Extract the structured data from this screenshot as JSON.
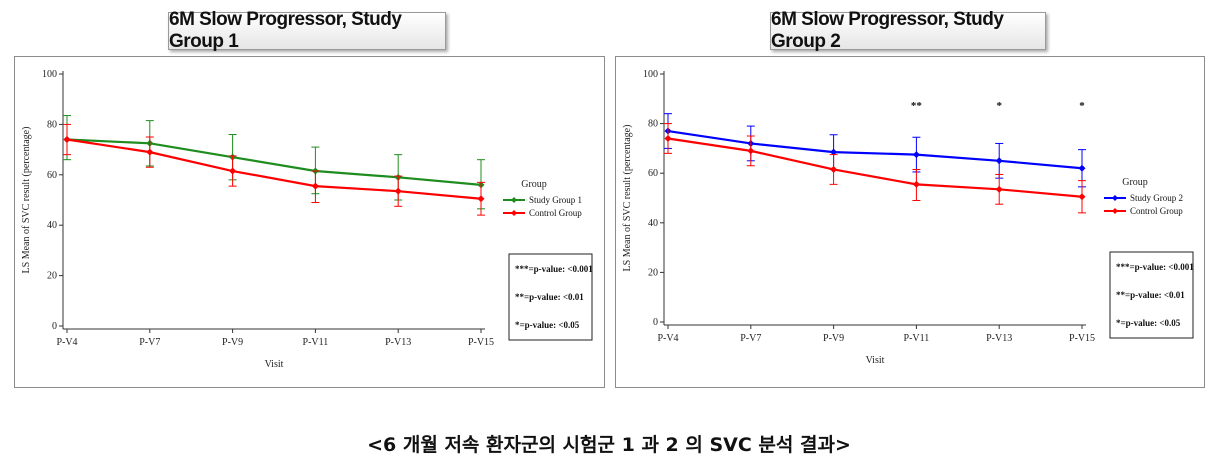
{
  "caption": "<6 개월 저속 환자군의 시험군 1 과 2 의 SVC 분석 결과>",
  "charts": [
    {
      "type": "line",
      "title": "6M Slow Progressor, Study Group 1",
      "xlabel": "Visit",
      "ylabel": "LS Mean of SVC result (percentage)",
      "categories": [
        "P-V4",
        "P-V7",
        "P-V9",
        "P-V11",
        "P-V13",
        "P-V15"
      ],
      "ylim": [
        0,
        100
      ],
      "yticks": [
        0,
        20,
        40,
        60,
        80,
        100
      ],
      "legend_title": "Group",
      "series": [
        {
          "name": "Study Group 1",
          "color": "#1e8c1e",
          "values": [
            74,
            72.5,
            67,
            61.5,
            59,
            56
          ],
          "lower": [
            66,
            63.5,
            58,
            52.5,
            50,
            46.5
          ],
          "upper": [
            83.5,
            81.5,
            76,
            71,
            68,
            66
          ]
        },
        {
          "name": "Control Group",
          "color": "#ff0000",
          "values": [
            74,
            69,
            61.5,
            55.5,
            53.5,
            50.5
          ],
          "lower": [
            68,
            63,
            55.5,
            49,
            47.5,
            44
          ],
          "upper": [
            80,
            75,
            67.5,
            61.5,
            59.5,
            57
          ]
        }
      ],
      "significance": [
        "",
        "",
        "",
        "",
        "",
        ""
      ],
      "pvalue_notes": [
        "***=p-value: <0.001",
        "**=p-value: <0.01",
        "*=p-value: <0.05"
      ]
    },
    {
      "type": "line",
      "title": "6M Slow Progressor, Study Group 2",
      "xlabel": "Visit",
      "ylabel": "LS Mean of SVC result (percentage)",
      "categories": [
        "P-V4",
        "P-V7",
        "P-V9",
        "P-V11",
        "P-V13",
        "P-V15"
      ],
      "ylim": [
        0,
        100
      ],
      "yticks": [
        0,
        20,
        40,
        60,
        80,
        100
      ],
      "legend_title": "Group",
      "series": [
        {
          "name": "Study Group 2",
          "color": "#0000ff",
          "values": [
            77,
            72,
            68.5,
            67.5,
            65,
            62
          ],
          "lower": [
            70,
            65,
            61.5,
            60.5,
            58,
            54.5
          ],
          "upper": [
            84,
            79,
            75.5,
            74.5,
            72,
            69.5
          ]
        },
        {
          "name": "Control Group",
          "color": "#ff0000",
          "values": [
            74,
            69,
            61.5,
            55.5,
            53.5,
            50.5
          ],
          "lower": [
            68,
            63,
            55.5,
            49,
            47.5,
            44
          ],
          "upper": [
            80,
            75,
            67.5,
            61.5,
            59.5,
            57
          ]
        }
      ],
      "significance": [
        "",
        "",
        "",
        "**",
        "*",
        "*"
      ],
      "pvalue_notes": [
        "***=p-value: <0.001",
        "**=p-value: <0.01",
        "*=p-value: <0.05"
      ]
    }
  ]
}
